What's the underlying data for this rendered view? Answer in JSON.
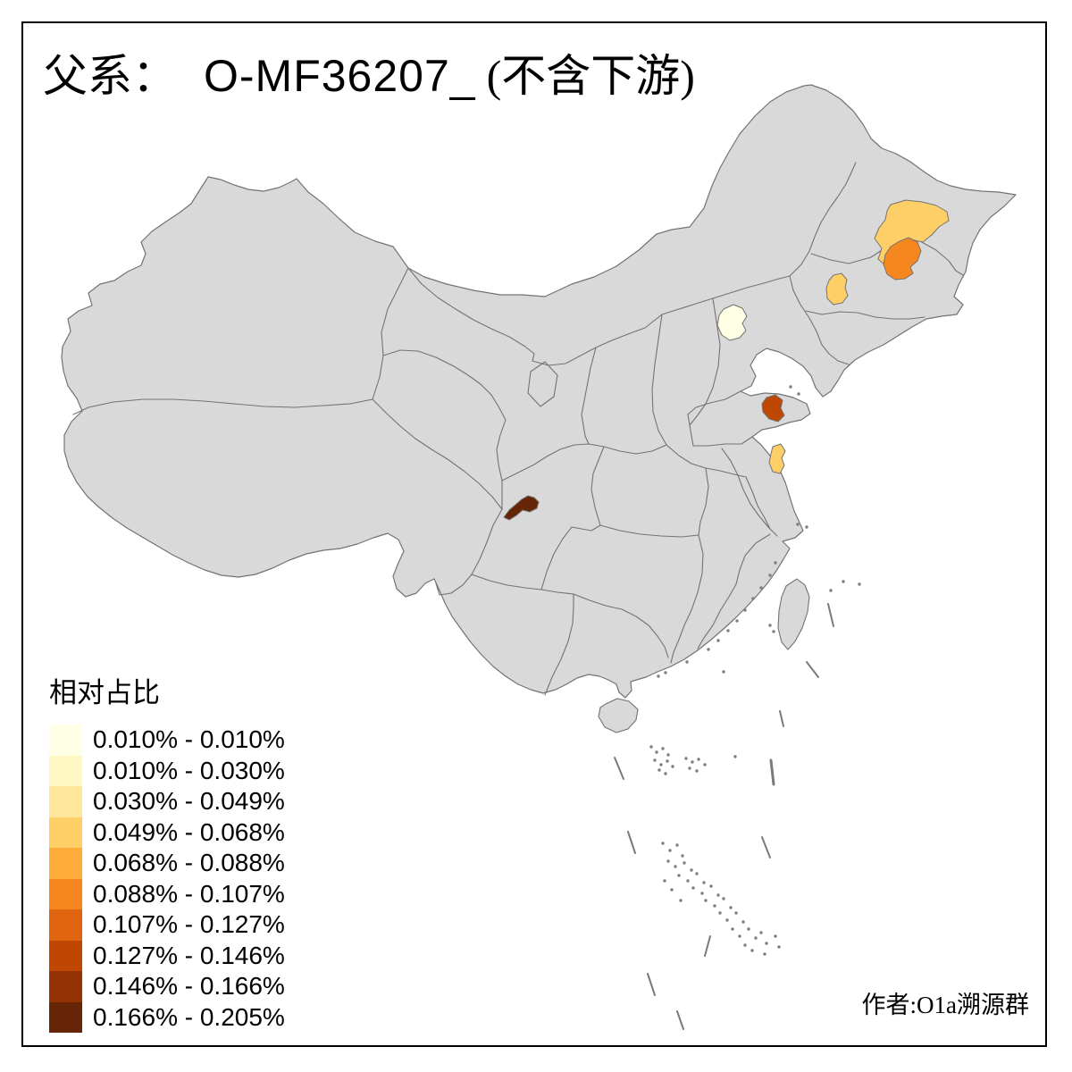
{
  "title": {
    "prefix": "父系：",
    "code": "O-MF36207_",
    "suffix": "(不含下游)"
  },
  "legend": {
    "title": "相对占比",
    "entries": [
      {
        "color": "#FFFFE5",
        "label": "0.010% - 0.010%"
      },
      {
        "color": "#FFF8C2",
        "label": "0.010% - 0.030%"
      },
      {
        "color": "#FEE79B",
        "label": "0.030% - 0.049%"
      },
      {
        "color": "#FECF66",
        "label": "0.049% - 0.068%"
      },
      {
        "color": "#FEAD3B",
        "label": "0.068% - 0.088%"
      },
      {
        "color": "#F6871F",
        "label": "0.088% - 0.107%"
      },
      {
        "color": "#E16510",
        "label": "0.107% - 0.127%"
      },
      {
        "color": "#C04702",
        "label": "0.127% - 0.146%"
      },
      {
        "color": "#933204",
        "label": "0.146% - 0.166%"
      },
      {
        "color": "#662506",
        "label": "0.166% - 0.205%"
      }
    ]
  },
  "credit": "作者:O1a溯源群",
  "map": {
    "background": "#FFFFFF",
    "base_fill": "#D9D9D9",
    "border_color": "#737373",
    "frame_color": "#000000",
    "highlighted_regions": [
      {
        "id": "beijing-area",
        "color": "#FFFFE5",
        "bin_label": "0.010% - 0.010%"
      },
      {
        "id": "heilongjiang-harbin-area",
        "color": "#FECF66",
        "bin_label": "0.049% - 0.068%"
      },
      {
        "id": "jilin-city-area",
        "color": "#F6871F",
        "bin_label": "0.088% - 0.107%"
      },
      {
        "id": "liaoning-small-area",
        "color": "#FECF66",
        "bin_label": "0.049% - 0.068%"
      },
      {
        "id": "shandong-coastal-area",
        "color": "#C04702",
        "bin_label": "0.127% - 0.146%"
      },
      {
        "id": "jiangsu-central-area",
        "color": "#FECF66",
        "bin_label": "0.049% - 0.068%"
      },
      {
        "id": "sichuan-west-area",
        "color": "#662506",
        "bin_label": "0.166% - 0.205%"
      }
    ]
  },
  "chart_data": {
    "type": "heatmap",
    "title": "父系： O-MF36207_ (不含下游)",
    "legend_title": "相对占比",
    "bins": [
      "0.010% - 0.010%",
      "0.010% - 0.030%",
      "0.030% - 0.049%",
      "0.049% - 0.068%",
      "0.068% - 0.088%",
      "0.088% - 0.107%",
      "0.107% - 0.127%",
      "0.127% - 0.146%",
      "0.146% - 0.166%",
      "0.166% - 0.205%"
    ],
    "bin_colors": [
      "#FFFFE5",
      "#FFF8C2",
      "#FEE79B",
      "#FECF66",
      "#FEAD3B",
      "#F6871F",
      "#E16510",
      "#C04702",
      "#933204",
      "#662506"
    ],
    "regions": [
      {
        "location": "Beijing area",
        "bin": "0.010% - 0.010%"
      },
      {
        "location": "Heilongjiang (Harbin area)",
        "bin": "0.049% - 0.068%"
      },
      {
        "location": "Jilin (Jilin city area)",
        "bin": "0.088% - 0.107%"
      },
      {
        "location": "Liaoning (small west area)",
        "bin": "0.049% - 0.068%"
      },
      {
        "location": "Shandong (coastal east area)",
        "bin": "0.127% - 0.146%"
      },
      {
        "location": "Jiangsu (central area)",
        "bin": "0.049% - 0.068%"
      },
      {
        "location": "Sichuan (western area)",
        "bin": "0.166% - 0.205%"
      }
    ],
    "note": "All other regions uncolored (gray base map)"
  }
}
